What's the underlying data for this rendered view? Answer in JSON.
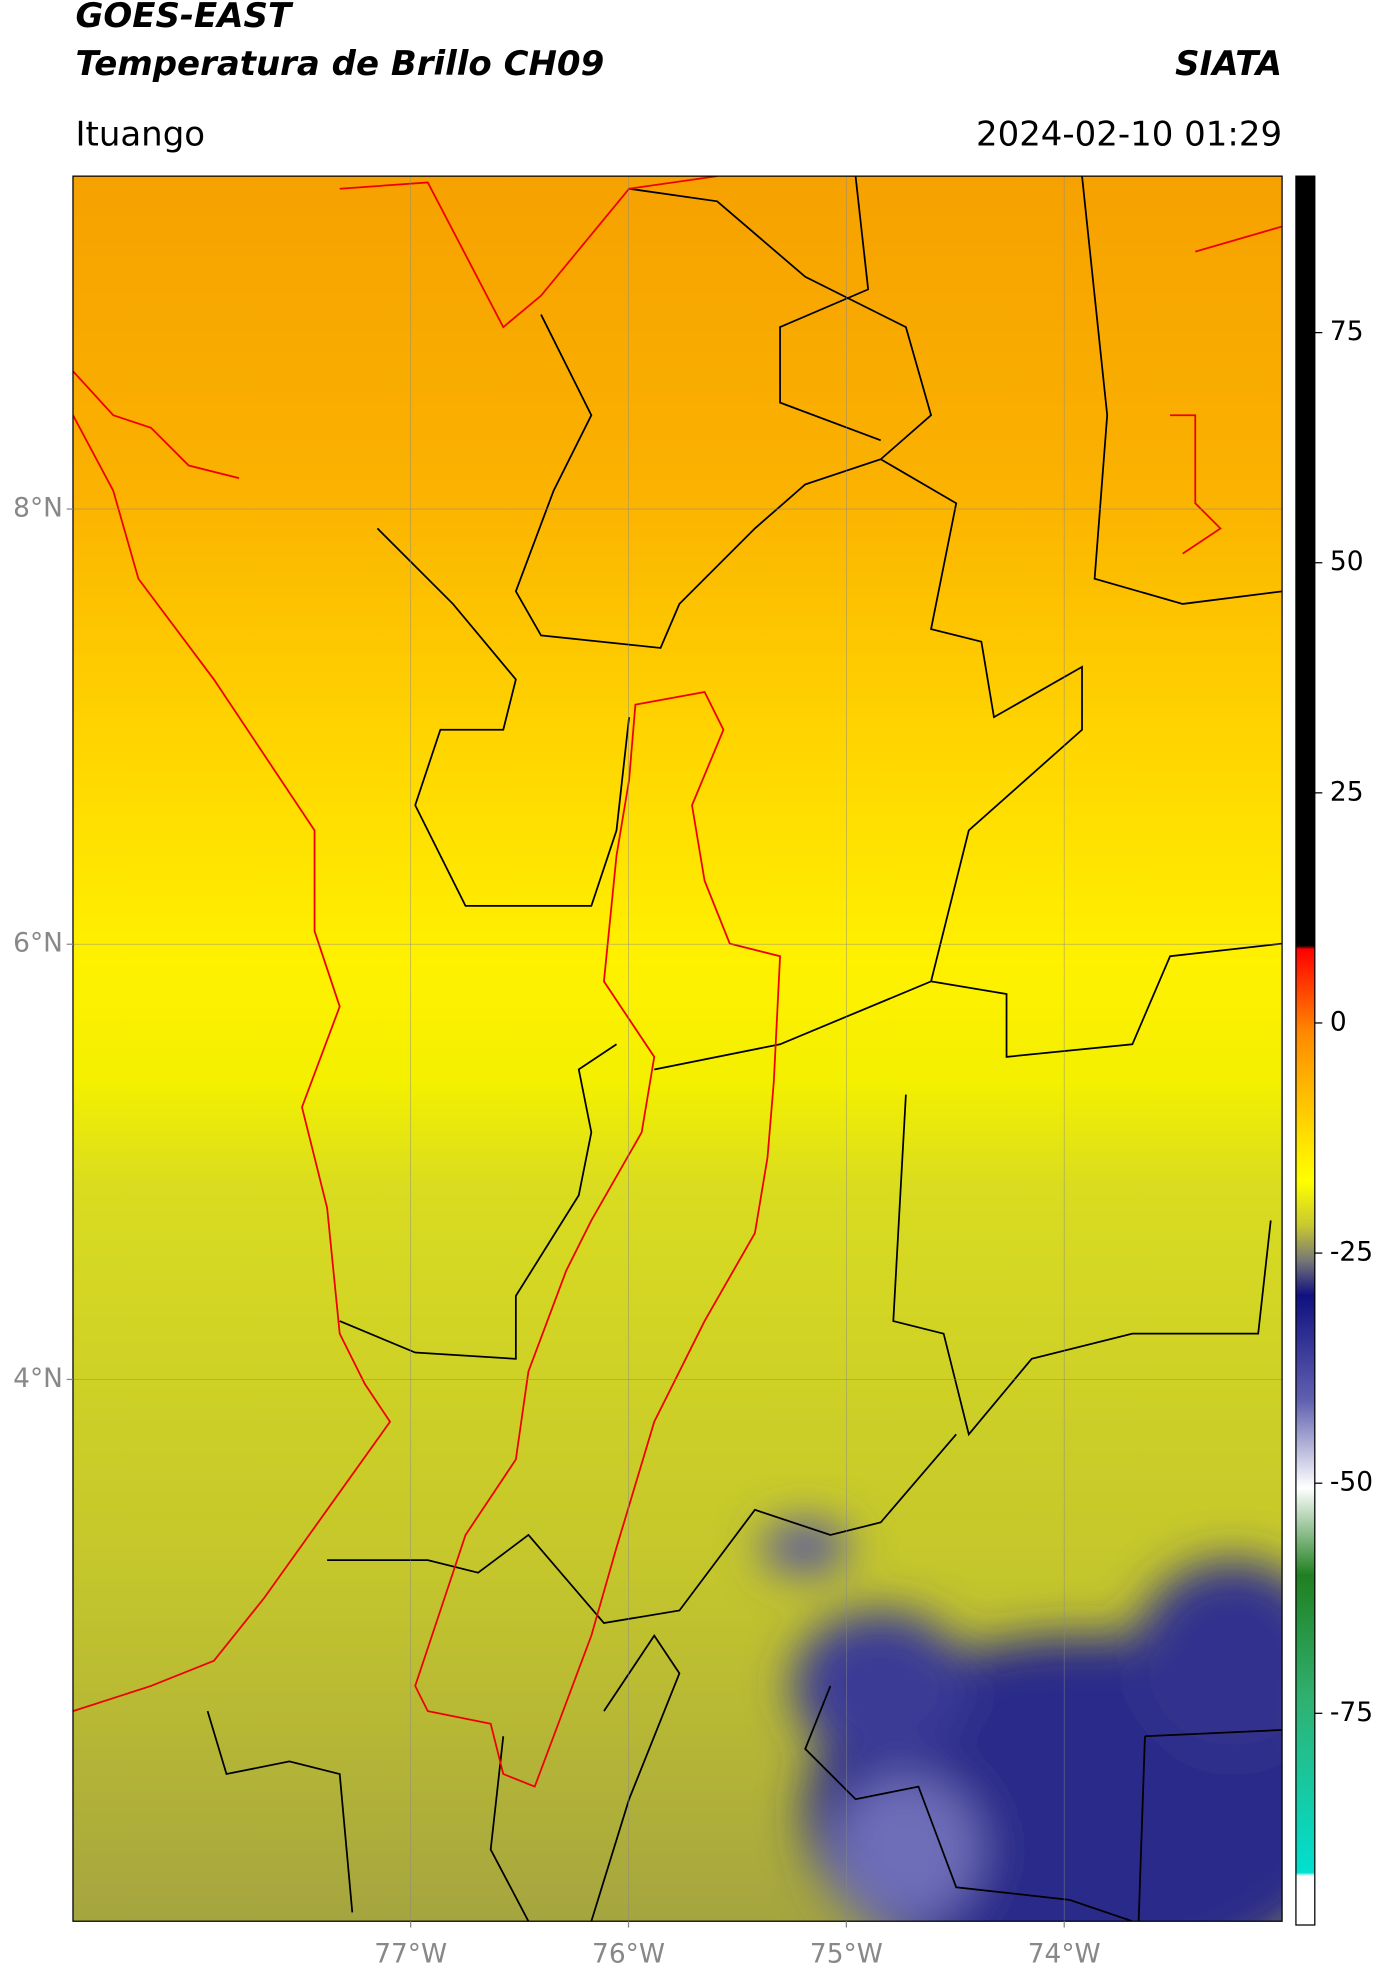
{
  "header": {
    "title_line1": "GOES-EAST",
    "title_line2": "Temperatura de Brillo CH09",
    "source": "SIATA",
    "location": "Ituango",
    "datetime": "2024-02-10 01:29"
  },
  "map": {
    "latlim": [
      1.51,
      9.53
    ],
    "lonlim": [
      -78.55,
      -73.0
    ],
    "latticks": [
      {
        "value": 8,
        "label": "8°N"
      },
      {
        "value": 6,
        "label": "6°N"
      },
      {
        "value": 4,
        "label": "4°N"
      }
    ],
    "lonticks": [
      {
        "value": -77,
        "label": "77°W"
      },
      {
        "value": -76,
        "label": "76°W"
      },
      {
        "value": -75,
        "label": "75°W"
      },
      {
        "value": -74,
        "label": "74°W"
      }
    ],
    "grid": true
  },
  "colorbar": {
    "lim": [
      -98,
      92
    ],
    "ticks": [
      75,
      50,
      25,
      0,
      -25,
      -50,
      -75
    ]
  }
}
